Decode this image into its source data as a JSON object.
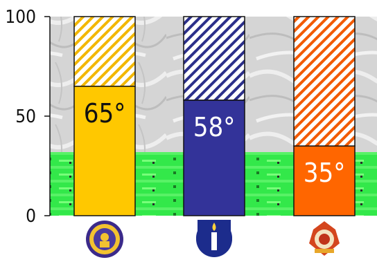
{
  "chart_data": {
    "type": "bar",
    "title": "",
    "xlabel": "",
    "ylabel": "",
    "ylim": [
      0,
      100
    ],
    "yticks": [
      "0",
      "50",
      "100"
    ],
    "grid": false,
    "legend": "none",
    "background": "grey marble texture with green field band",
    "bars": [
      {
        "icon": "university-seal-emblem",
        "value": 65,
        "label": "65°",
        "color": "#FFC800",
        "stripe_color": "#F2B700",
        "label_color": "#111111"
      },
      {
        "icon": "candle-emblem",
        "value": 58,
        "label": "58°",
        "color": "#333399",
        "stripe_color": "#2B2F8A",
        "label_color": "#ffffff"
      },
      {
        "icon": "red-crest-emblem",
        "value": 35,
        "label": "35°",
        "color": "#FF6600",
        "stripe_color": "#F25A00",
        "label_color": "#ffffff"
      }
    ]
  }
}
